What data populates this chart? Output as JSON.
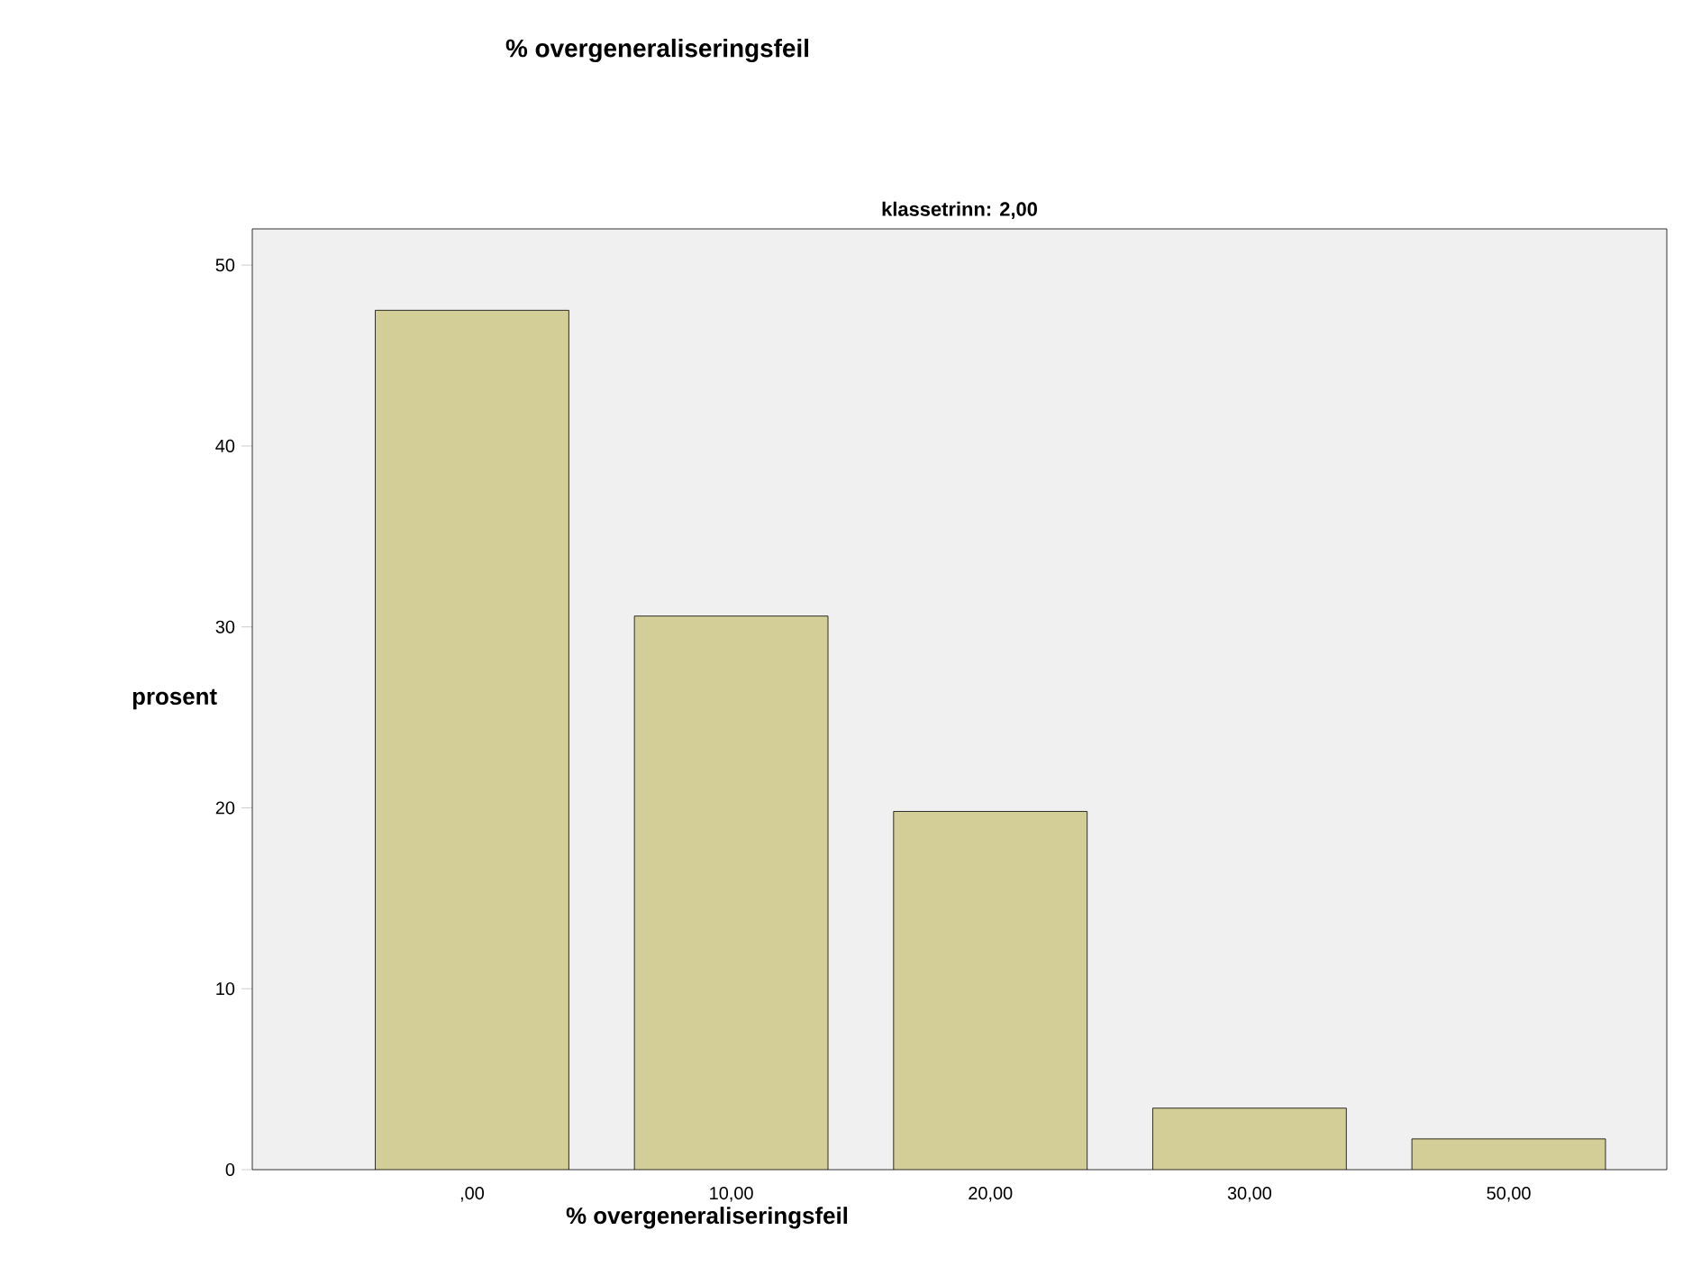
{
  "chart_data": {
    "type": "bar",
    "title": "% overgeneraliseringsfeil",
    "subtitle": "klassetrinn: 2,00",
    "xlabel": "% overgeneraliseringsfeil",
    "ylabel": "prosent",
    "categories": [
      ",00",
      "10,00",
      "20,00",
      "30,00",
      "50,00"
    ],
    "values": [
      47.5,
      30.6,
      19.8,
      3.4,
      1.7
    ],
    "color": "#d3ce97",
    "ylim": [
      0,
      52
    ],
    "yticks": [
      0,
      10,
      20,
      30,
      40,
      50
    ]
  }
}
